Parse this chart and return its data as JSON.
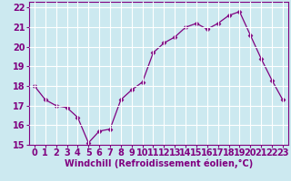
{
  "x": [
    0,
    1,
    2,
    3,
    4,
    5,
    6,
    7,
    8,
    9,
    10,
    11,
    12,
    13,
    14,
    15,
    16,
    17,
    18,
    19,
    20,
    21,
    22,
    23
  ],
  "y": [
    18.0,
    17.3,
    17.0,
    16.9,
    16.4,
    15.1,
    15.7,
    15.8,
    17.3,
    17.8,
    18.2,
    19.7,
    20.2,
    20.5,
    21.0,
    21.2,
    20.9,
    21.2,
    21.6,
    21.8,
    20.6,
    19.4,
    18.3,
    17.3
  ],
  "xlabel": "Windchill (Refroidissement éolien,°C)",
  "xlim_min": -0.5,
  "xlim_max": 23.5,
  "ylim_min": 15,
  "ylim_max": 22.3,
  "yticks": [
    15,
    16,
    17,
    18,
    19,
    20,
    21,
    22
  ],
  "xticks": [
    0,
    1,
    2,
    3,
    4,
    5,
    6,
    7,
    8,
    9,
    10,
    11,
    12,
    13,
    14,
    15,
    16,
    17,
    18,
    19,
    20,
    21,
    22,
    23
  ],
  "line_color": "#800080",
  "marker": "D",
  "marker_size": 2.5,
  "bg_color": "#cce9f0",
  "grid_color": "#ffffff",
  "tick_label_color": "#800080",
  "xlabel_color": "#800080",
  "xlabel_fontsize": 7,
  "tick_fontsize": 7,
  "spine_color": "#800080"
}
